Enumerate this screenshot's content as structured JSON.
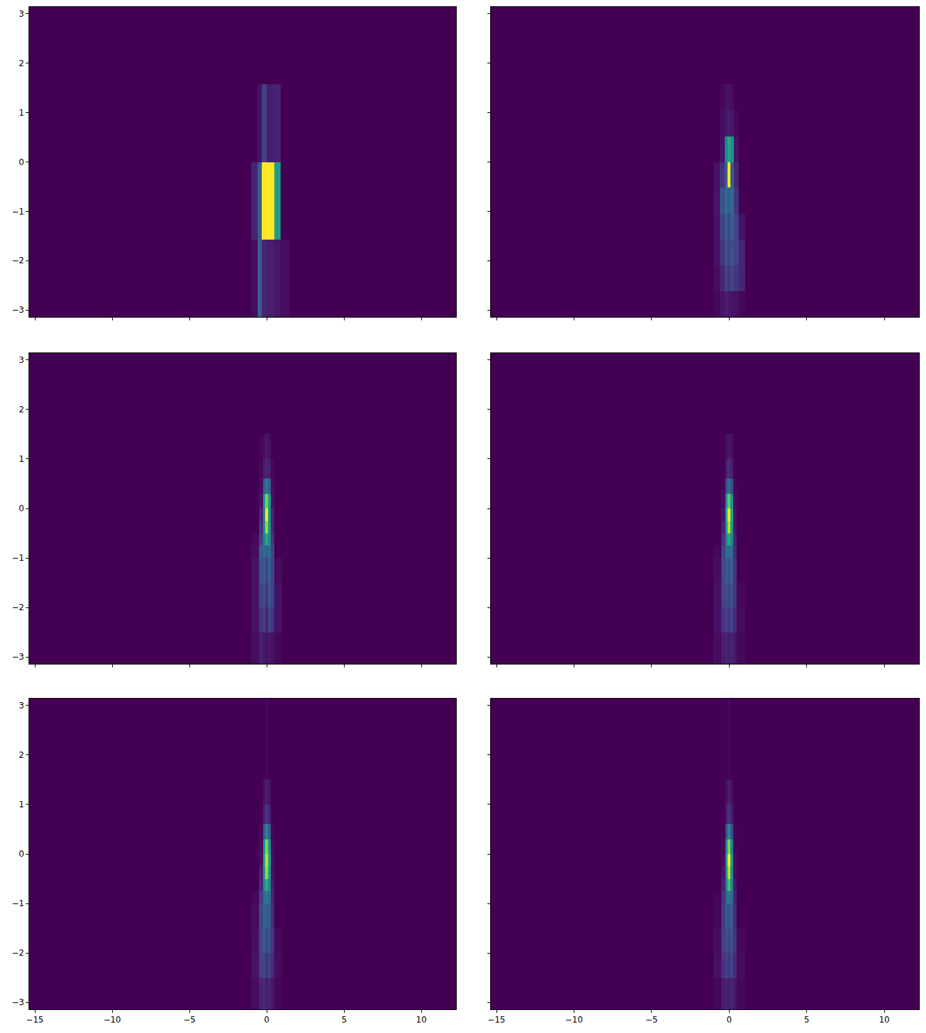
{
  "chart_data": [
    {
      "type": "heatmap",
      "tick_labels": "y",
      "xlim": [
        -15.36,
        12.24
      ],
      "ylim": [
        -3.14,
        3.14
      ],
      "xticks": [
        -15,
        -10,
        -5,
        0,
        5,
        10
      ],
      "yticks": [
        -3,
        -2,
        -1,
        0,
        1,
        2,
        3
      ],
      "zlim": [
        0,
        1
      ],
      "x_edges": [
        -15.36,
        -1,
        -0.6,
        -0.3,
        0,
        0.5,
        0.9,
        1.5,
        12.24
      ],
      "y_edges": [
        -3.14,
        -1.57,
        0,
        1.57,
        3.14
      ],
      "z": [
        [
          0,
          0.03,
          0.3,
          0.1,
          0.08,
          0.06,
          0.03,
          0
        ],
        [
          0,
          0.1,
          0.3,
          1,
          1,
          0.55,
          0,
          0
        ],
        [
          0,
          0,
          0.05,
          0.2,
          0.08,
          0.1,
          0,
          0
        ],
        [
          0,
          0,
          0,
          0,
          0,
          0,
          0,
          0
        ]
      ]
    },
    {
      "type": "heatmap",
      "tick_labels": false,
      "xlim": [
        -15.36,
        12.24
      ],
      "ylim": [
        -3.14,
        3.14
      ],
      "xticks": [
        -15,
        -10,
        -5,
        0,
        5,
        10
      ],
      "yticks": [
        -3,
        -2,
        -1,
        0,
        1,
        2,
        3
      ],
      "zlim": [
        0,
        1
      ],
      "x_edges": [
        -15.36,
        -1,
        -0.6,
        -0.3,
        -0.1,
        0.1,
        0.3,
        0.6,
        1,
        12.24
      ],
      "y_edges": [
        -3.14,
        -2.62,
        -2.09,
        -1.57,
        -1.05,
        -0.52,
        0,
        0.52,
        1.05,
        1.57,
        3.14
      ],
      "z": [
        [
          0,
          0.02,
          0.05,
          0.08,
          0.06,
          0.05,
          0.04,
          0.02,
          0
        ],
        [
          0,
          0.03,
          0.1,
          0.2,
          0.15,
          0.2,
          0.15,
          0.1,
          0
        ],
        [
          0,
          0.05,
          0.15,
          0.25,
          0.2,
          0.25,
          0.2,
          0.1,
          0
        ],
        [
          0,
          0.05,
          0.2,
          0.3,
          0.2,
          0.3,
          0.2,
          0.05,
          0
        ],
        [
          0,
          0.05,
          0.25,
          0.35,
          0.3,
          0.35,
          0.15,
          0,
          0
        ],
        [
          0,
          0.05,
          0.15,
          0.3,
          1,
          0.3,
          0.1,
          0,
          0
        ],
        [
          0,
          0,
          0.05,
          0.45,
          0.6,
          0.5,
          0.05,
          0,
          0
        ],
        [
          0,
          0,
          0.03,
          0.06,
          0.08,
          0.06,
          0.02,
          0,
          0
        ],
        [
          0,
          0,
          0.02,
          0.04,
          0.05,
          0.03,
          0,
          0,
          0
        ],
        [
          0,
          0,
          0,
          0,
          0,
          0,
          0,
          0,
          0
        ]
      ]
    },
    {
      "type": "heatmap",
      "tick_labels": "y",
      "xlim": [
        -15.36,
        12.24
      ],
      "ylim": [
        -3.14,
        3.14
      ],
      "xticks": [
        -15,
        -10,
        -5,
        0,
        5,
        10
      ],
      "yticks": [
        -3,
        -2,
        -1,
        0,
        1,
        2,
        3
      ],
      "zlim": [
        0,
        1
      ],
      "x_edges": [
        -15.36,
        -1,
        -0.5,
        -0.25,
        -0.1,
        0.1,
        0.25,
        0.5,
        1,
        12.24
      ],
      "y_edges": [
        -3.14,
        -2.5,
        -2,
        -1.5,
        -1,
        -0.75,
        -0.5,
        -0.25,
        0,
        0.3,
        0.6,
        1,
        1.5,
        3.14
      ],
      "z": [
        [
          0,
          0.03,
          0.08,
          0.06,
          0.05,
          0.06,
          0.05,
          0.02,
          0
        ],
        [
          0,
          0.05,
          0.15,
          0.2,
          0.1,
          0.2,
          0.15,
          0.05,
          0
        ],
        [
          0,
          0.05,
          0.2,
          0.25,
          0.15,
          0.25,
          0.2,
          0.05,
          0
        ],
        [
          0,
          0.05,
          0.25,
          0.3,
          0.2,
          0.3,
          0.2,
          0.03,
          0
        ],
        [
          0,
          0.03,
          0.3,
          0.35,
          0.3,
          0.35,
          0.2,
          0,
          0
        ],
        [
          0,
          0.02,
          0.2,
          0.45,
          0.6,
          0.45,
          0.15,
          0,
          0
        ],
        [
          0,
          0,
          0.15,
          0.5,
          0.85,
          0.5,
          0.1,
          0,
          0
        ],
        [
          0,
          0,
          0.1,
          0.5,
          1,
          0.5,
          0.1,
          0,
          0
        ],
        [
          0,
          0,
          0.05,
          0.55,
          0.8,
          0.55,
          0.05,
          0,
          0
        ],
        [
          0,
          0,
          0.03,
          0.3,
          0.4,
          0.3,
          0.03,
          0,
          0
        ],
        [
          0,
          0,
          0.02,
          0.08,
          0.1,
          0.08,
          0.02,
          0,
          0
        ],
        [
          0,
          0,
          0.01,
          0.04,
          0.06,
          0.04,
          0,
          0,
          0
        ],
        [
          0,
          0,
          0,
          0,
          0,
          0,
          0,
          0,
          0
        ]
      ]
    },
    {
      "type": "heatmap",
      "tick_labels": false,
      "xlim": [
        -15.36,
        12.24
      ],
      "ylim": [
        -3.14,
        3.14
      ],
      "xticks": [
        -15,
        -10,
        -5,
        0,
        5,
        10
      ],
      "yticks": [
        -3,
        -2,
        -1,
        0,
        1,
        2,
        3
      ],
      "zlim": [
        0,
        1
      ],
      "x_edges": [
        -15.36,
        -1,
        -0.5,
        -0.25,
        -0.08,
        0.08,
        0.25,
        0.5,
        1,
        12.24
      ],
      "y_edges": [
        -3.14,
        -2.5,
        -2,
        -1.5,
        -1,
        -0.75,
        -0.5,
        -0.25,
        0,
        0.3,
        0.6,
        1,
        1.5,
        3.14
      ],
      "z": [
        [
          0,
          0.03,
          0.08,
          0.1,
          0.08,
          0.1,
          0.06,
          0.02,
          0
        ],
        [
          0,
          0.05,
          0.15,
          0.2,
          0.15,
          0.2,
          0.12,
          0.03,
          0
        ],
        [
          0,
          0.04,
          0.2,
          0.25,
          0.2,
          0.25,
          0.15,
          0.02,
          0
        ],
        [
          0,
          0.03,
          0.22,
          0.3,
          0.25,
          0.3,
          0.15,
          0,
          0
        ],
        [
          0,
          0.02,
          0.2,
          0.35,
          0.35,
          0.35,
          0.12,
          0,
          0
        ],
        [
          0,
          0,
          0.15,
          0.45,
          0.6,
          0.45,
          0.1,
          0,
          0
        ],
        [
          0,
          0,
          0.1,
          0.55,
          0.9,
          0.55,
          0.06,
          0,
          0
        ],
        [
          0,
          0,
          0.05,
          0.6,
          1,
          0.6,
          0.05,
          0,
          0
        ],
        [
          0,
          0,
          0.03,
          0.5,
          0.75,
          0.5,
          0.03,
          0,
          0
        ],
        [
          0,
          0,
          0.02,
          0.25,
          0.35,
          0.25,
          0.02,
          0,
          0
        ],
        [
          0,
          0,
          0,
          0.08,
          0.12,
          0.08,
          0,
          0,
          0
        ],
        [
          0,
          0,
          0,
          0.04,
          0.06,
          0.04,
          0,
          0,
          0
        ],
        [
          0,
          0,
          0,
          0,
          0,
          0,
          0,
          0,
          0
        ]
      ]
    },
    {
      "type": "heatmap",
      "xlim": [
        -15.36,
        12.24
      ],
      "ylim": [
        -3.14,
        3.14
      ],
      "xticks": [
        -15,
        -10,
        -5,
        0,
        5,
        10
      ],
      "yticks": [
        -3,
        -2,
        -1,
        0,
        1,
        2,
        3
      ],
      "zlim": [
        0,
        1
      ],
      "x_edges": [
        -15.36,
        -1,
        -0.5,
        -0.25,
        -0.08,
        0.08,
        0.25,
        0.5,
        1,
        12.24
      ],
      "y_edges": [
        -3.14,
        -2.5,
        -2,
        -1.5,
        -1,
        -0.75,
        -0.5,
        -0.25,
        0,
        0.3,
        0.6,
        1,
        1.5,
        3.14
      ],
      "z": [
        [
          0,
          0.03,
          0.1,
          0.12,
          0.08,
          0.1,
          0.06,
          0.02,
          0
        ],
        [
          0,
          0.05,
          0.18,
          0.22,
          0.15,
          0.2,
          0.12,
          0.03,
          0
        ],
        [
          0,
          0.04,
          0.22,
          0.28,
          0.22,
          0.25,
          0.15,
          0.02,
          0
        ],
        [
          0,
          0.03,
          0.22,
          0.32,
          0.28,
          0.3,
          0.12,
          0,
          0
        ],
        [
          0,
          0.02,
          0.18,
          0.38,
          0.4,
          0.35,
          0.1,
          0,
          0
        ],
        [
          0,
          0,
          0.12,
          0.48,
          0.62,
          0.45,
          0.08,
          0,
          0
        ],
        [
          0,
          0,
          0.08,
          0.55,
          0.85,
          0.52,
          0.05,
          0,
          0
        ],
        [
          0,
          0,
          0.04,
          0.6,
          0.9,
          0.58,
          0.04,
          0,
          0
        ],
        [
          0,
          0,
          0.03,
          0.55,
          0.8,
          0.5,
          0.03,
          0,
          0
        ],
        [
          0,
          0,
          0.02,
          0.3,
          0.45,
          0.28,
          0.02,
          0,
          0
        ],
        [
          0,
          0,
          0,
          0.1,
          0.15,
          0.1,
          0,
          0,
          0
        ],
        [
          0,
          0,
          0,
          0.05,
          0.08,
          0.05,
          0,
          0,
          0
        ],
        [
          0,
          0,
          0,
          0,
          0.02,
          0,
          0,
          0,
          0
        ]
      ]
    },
    {
      "type": "heatmap",
      "tick_labels": "x",
      "xlim": [
        -15.36,
        12.24
      ],
      "ylim": [
        -3.14,
        3.14
      ],
      "xticks": [
        -15,
        -10,
        -5,
        0,
        5,
        10
      ],
      "yticks": [
        -3,
        -2,
        -1,
        0,
        1,
        2,
        3
      ],
      "zlim": [
        0,
        1
      ],
      "x_edges": [
        -15.36,
        -1,
        -0.5,
        -0.25,
        -0.08,
        0.08,
        0.25,
        0.5,
        1,
        12.24
      ],
      "y_edges": [
        -3.14,
        -2.5,
        -2,
        -1.5,
        -1,
        -0.75,
        -0.5,
        -0.25,
        0,
        0.3,
        0.6,
        1,
        1.5,
        3.14
      ],
      "z": [
        [
          0,
          0.02,
          0.08,
          0.1,
          0.08,
          0.1,
          0.06,
          0.02,
          0
        ],
        [
          0,
          0.04,
          0.15,
          0.2,
          0.15,
          0.2,
          0.12,
          0.03,
          0
        ],
        [
          0,
          0.03,
          0.18,
          0.25,
          0.2,
          0.25,
          0.15,
          0.02,
          0
        ],
        [
          0,
          0.02,
          0.18,
          0.3,
          0.25,
          0.3,
          0.12,
          0,
          0
        ],
        [
          0,
          0.01,
          0.15,
          0.35,
          0.4,
          0.35,
          0.1,
          0,
          0
        ],
        [
          0,
          0,
          0.1,
          0.45,
          0.7,
          0.45,
          0.06,
          0,
          0
        ],
        [
          0,
          0,
          0.06,
          0.5,
          0.9,
          0.5,
          0.04,
          0,
          0
        ],
        [
          0,
          0,
          0.03,
          0.55,
          1,
          0.55,
          0.03,
          0,
          0
        ],
        [
          0,
          0,
          0.02,
          0.45,
          0.8,
          0.45,
          0.02,
          0,
          0
        ],
        [
          0,
          0,
          0.01,
          0.25,
          0.45,
          0.25,
          0.01,
          0,
          0
        ],
        [
          0,
          0,
          0,
          0.08,
          0.15,
          0.08,
          0,
          0,
          0
        ],
        [
          0,
          0,
          0,
          0.04,
          0.08,
          0.04,
          0,
          0,
          0
        ],
        [
          0,
          0,
          0,
          0,
          0.02,
          0,
          0,
          0,
          0
        ]
      ]
    }
  ]
}
